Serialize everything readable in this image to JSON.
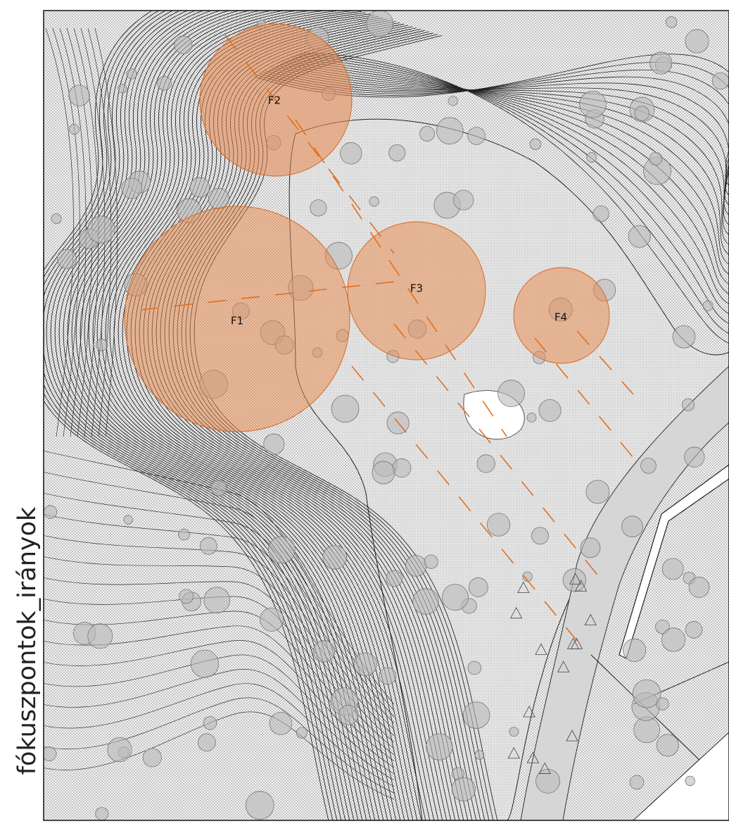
{
  "title": "fókuszpontok_irányok",
  "focal_points": [
    {
      "label": "F1"
    },
    {
      "label": "F2"
    },
    {
      "label": "F3"
    },
    {
      "label": "F4"
    }
  ]
}
